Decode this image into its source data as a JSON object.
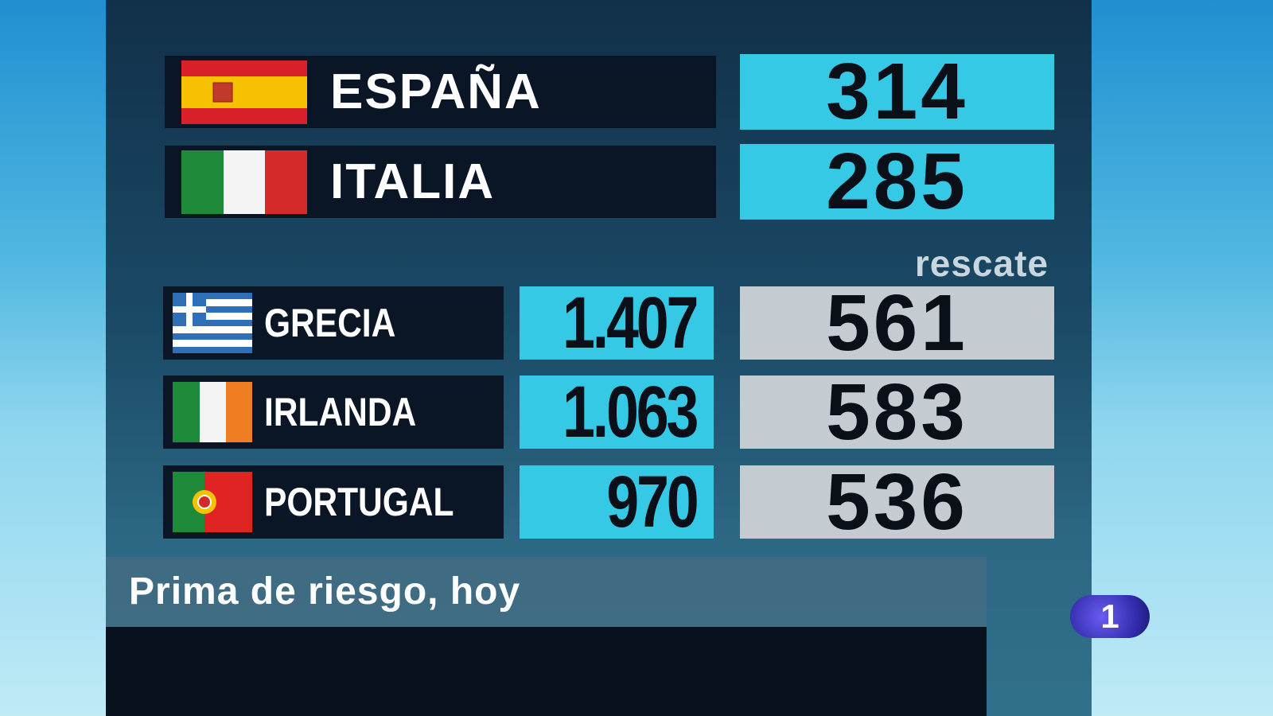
{
  "top_rows": [
    {
      "name": "ESPAÑA",
      "value": "314"
    },
    {
      "name": "ITALIA",
      "value": "285"
    }
  ],
  "rescate_label": "rescate",
  "bottom_rows": [
    {
      "name": "GRECIA",
      "value": "1.407",
      "rescate": "561"
    },
    {
      "name": "IRLANDA",
      "value": "1.063",
      "rescate": "583"
    },
    {
      "name": "PORTUGAL",
      "value": "970",
      "rescate": "536"
    }
  ],
  "caption": "Prima de riesgo, hoy",
  "logo": "1"
}
